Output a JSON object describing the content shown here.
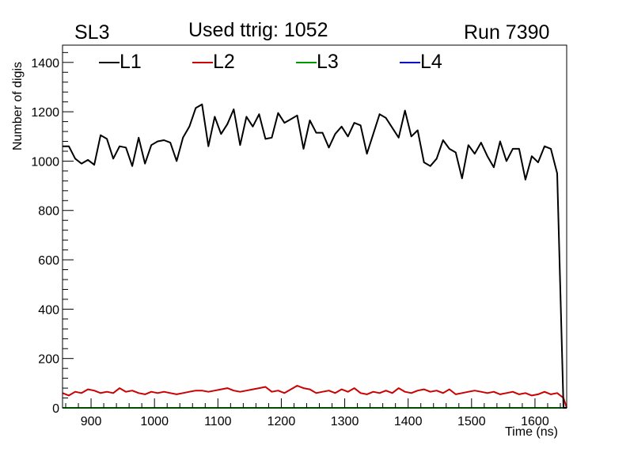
{
  "header": {
    "left": "SL3",
    "center": "Used ttrig: 1052",
    "right": "Run 7390"
  },
  "chart_data": {
    "type": "line",
    "title": "Used ttrig: 1052",
    "xlabel": "Time (ns)",
    "ylabel": "Number of digis",
    "xlim": [
      855,
      1650
    ],
    "ylim": [
      0,
      1470
    ],
    "xticks": [
      900,
      1000,
      1100,
      1200,
      1300,
      1400,
      1500,
      1600
    ],
    "yticks": [
      0,
      200,
      400,
      600,
      800,
      1000,
      1200,
      1400
    ],
    "legend_position": "top",
    "grid": false,
    "x": [
      855,
      865,
      875,
      885,
      895,
      905,
      915,
      925,
      935,
      945,
      955,
      965,
      975,
      985,
      995,
      1005,
      1015,
      1025,
      1035,
      1045,
      1055,
      1065,
      1075,
      1085,
      1095,
      1105,
      1115,
      1125,
      1135,
      1145,
      1155,
      1165,
      1175,
      1185,
      1195,
      1205,
      1215,
      1225,
      1235,
      1245,
      1255,
      1265,
      1275,
      1285,
      1295,
      1305,
      1315,
      1325,
      1335,
      1345,
      1355,
      1365,
      1375,
      1385,
      1395,
      1405,
      1415,
      1425,
      1435,
      1445,
      1455,
      1465,
      1475,
      1485,
      1495,
      1505,
      1515,
      1525,
      1535,
      1545,
      1555,
      1565,
      1575,
      1585,
      1595,
      1605,
      1615,
      1625,
      1635,
      1645,
      1655
    ],
    "series": [
      {
        "name": "L1",
        "color": "#000000",
        "values": [
          1060,
          1060,
          1010,
          990,
          1005,
          985,
          1105,
          1090,
          1010,
          1060,
          1055,
          980,
          1095,
          990,
          1065,
          1080,
          1085,
          1075,
          1000,
          1095,
          1140,
          1215,
          1230,
          1060,
          1180,
          1110,
          1150,
          1210,
          1065,
          1180,
          1140,
          1190,
          1090,
          1095,
          1195,
          1155,
          1170,
          1185,
          1050,
          1165,
          1115,
          1115,
          1055,
          1110,
          1140,
          1100,
          1155,
          1145,
          1030,
          1110,
          1190,
          1175,
          1135,
          1095,
          1205,
          1100,
          1125,
          995,
          980,
          1010,
          1085,
          1050,
          1035,
          930,
          1065,
          1030,
          1075,
          1020,
          975,
          1080,
          1000,
          1050,
          1050,
          925,
          1020,
          995,
          1060,
          1050,
          950,
          0,
          0
        ]
      },
      {
        "name": "L2",
        "color": "#cc0000",
        "values": [
          60,
          50,
          65,
          60,
          75,
          70,
          60,
          65,
          60,
          80,
          65,
          70,
          60,
          55,
          65,
          60,
          65,
          60,
          55,
          60,
          65,
          70,
          70,
          65,
          70,
          75,
          80,
          70,
          65,
          70,
          75,
          80,
          85,
          65,
          70,
          60,
          75,
          90,
          80,
          75,
          60,
          65,
          70,
          60,
          75,
          65,
          80,
          60,
          55,
          65,
          60,
          70,
          60,
          80,
          65,
          60,
          70,
          75,
          65,
          70,
          60,
          75,
          55,
          60,
          65,
          70,
          65,
          60,
          65,
          55,
          60,
          65,
          55,
          60,
          50,
          55,
          65,
          55,
          60,
          40,
          0
        ]
      },
      {
        "name": "L3",
        "color": "#009900",
        "values": [
          0,
          0,
          0,
          0,
          0,
          0,
          0,
          0,
          0,
          0,
          0,
          0,
          0,
          0,
          0,
          0,
          0,
          0,
          0,
          0,
          0,
          0,
          0,
          0,
          0,
          0,
          0,
          0,
          0,
          0,
          0,
          0,
          0,
          0,
          0,
          0,
          0,
          0,
          0,
          0,
          0,
          0,
          0,
          0,
          0,
          0,
          0,
          0,
          0,
          0,
          0,
          0,
          0,
          0,
          0,
          0,
          0,
          0,
          0,
          0,
          0,
          0,
          0,
          0,
          0,
          0,
          0,
          0,
          0,
          0,
          0,
          0,
          0,
          0,
          0,
          0,
          0,
          0,
          0,
          0,
          0
        ]
      },
      {
        "name": "L4",
        "color": "#0000cc",
        "values": [
          0,
          0,
          0,
          0,
          0,
          0,
          0,
          0,
          0,
          0,
          0,
          0,
          0,
          0,
          0,
          0,
          0,
          0,
          0,
          0,
          0,
          0,
          0,
          0,
          0,
          0,
          0,
          0,
          0,
          0,
          0,
          0,
          0,
          0,
          0,
          0,
          0,
          0,
          0,
          0,
          0,
          0,
          0,
          0,
          0,
          0,
          0,
          0,
          0,
          0,
          0,
          0,
          0,
          0,
          0,
          0,
          0,
          0,
          0,
          0,
          0,
          0,
          0,
          0,
          0,
          0,
          0,
          0,
          0,
          0,
          0,
          0,
          0,
          0,
          0,
          0,
          0,
          0,
          0,
          0,
          0
        ]
      }
    ]
  }
}
